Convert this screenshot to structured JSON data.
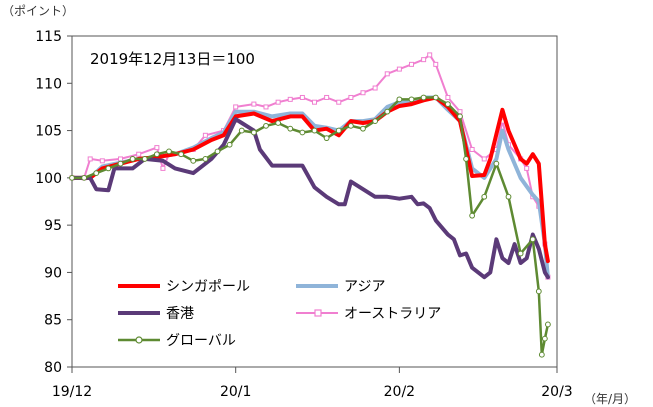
{
  "chart_data": {
    "type": "line",
    "y_unit_label": "（ポイント）",
    "x_unit_label": "（年/月）",
    "annotation": "2019年12月13日＝100",
    "ylim": [
      80,
      115
    ],
    "yticks": [
      80,
      85,
      90,
      95,
      100,
      105,
      110,
      115
    ],
    "xlim": [
      0,
      80
    ],
    "xticks": [
      {
        "pos": 0,
        "label": "19/12"
      },
      {
        "pos": 27,
        "label": "20/1"
      },
      {
        "pos": 54,
        "label": "20/2"
      },
      {
        "pos": 80,
        "label": "20/3"
      }
    ],
    "series": [
      {
        "name": "シンガポール",
        "color": "#ff0000",
        "width": 4,
        "marker": "none",
        "points": [
          [
            0,
            100
          ],
          [
            3,
            100
          ],
          [
            5,
            101
          ],
          [
            8,
            101.5
          ],
          [
            11,
            102
          ],
          [
            14,
            102.2
          ],
          [
            17,
            102.5
          ],
          [
            20,
            103
          ],
          [
            23,
            104
          ],
          [
            25,
            104.5
          ],
          [
            27,
            106.5
          ],
          [
            30,
            106.8
          ],
          [
            33,
            106
          ],
          [
            36,
            106.5
          ],
          [
            38,
            106.5
          ],
          [
            40,
            105
          ],
          [
            42,
            105.2
          ],
          [
            44,
            104.5
          ],
          [
            46,
            106
          ],
          [
            48,
            105.8
          ],
          [
            50,
            106
          ],
          [
            52,
            107
          ],
          [
            54,
            107.6
          ],
          [
            56,
            107.8
          ],
          [
            58,
            108.2
          ],
          [
            60,
            108.5
          ],
          [
            62,
            107.5
          ],
          [
            64,
            106
          ],
          [
            66,
            100.2
          ],
          [
            68,
            100.3
          ],
          [
            69,
            102
          ],
          [
            71,
            107.2
          ],
          [
            72,
            105
          ],
          [
            74,
            102
          ],
          [
            75,
            101.5
          ],
          [
            76,
            102.5
          ],
          [
            77,
            101.5
          ],
          [
            78,
            93
          ],
          [
            78.5,
            91.2
          ]
        ]
      },
      {
        "name": "アジア",
        "color": "#8fb4d9",
        "width": 4,
        "marker": "none",
        "points": [
          [
            0,
            100
          ],
          [
            3,
            100
          ],
          [
            5,
            101.2
          ],
          [
            8,
            101.6
          ],
          [
            11,
            102
          ],
          [
            14,
            102.2
          ],
          [
            17,
            102.5
          ],
          [
            20,
            103.2
          ],
          [
            23,
            104.2
          ],
          [
            25,
            104.8
          ],
          [
            27,
            107
          ],
          [
            30,
            107
          ],
          [
            33,
            106.5
          ],
          [
            36,
            106.8
          ],
          [
            38,
            106.8
          ],
          [
            40,
            105.5
          ],
          [
            42,
            105.3
          ],
          [
            44,
            105
          ],
          [
            46,
            106
          ],
          [
            48,
            106
          ],
          [
            50,
            106.2
          ],
          [
            52,
            107.5
          ],
          [
            54,
            108
          ],
          [
            56,
            108
          ],
          [
            58,
            108.5
          ],
          [
            60,
            108.5
          ],
          [
            62,
            107.2
          ],
          [
            64,
            106
          ],
          [
            66,
            101
          ],
          [
            68,
            100
          ],
          [
            70,
            102
          ],
          [
            71,
            105
          ],
          [
            72,
            103
          ],
          [
            74,
            100
          ],
          [
            76,
            98.2
          ],
          [
            77,
            97.5
          ],
          [
            78,
            93
          ],
          [
            78.5,
            89.5
          ]
        ]
      },
      {
        "name": "香港",
        "color": "#5b3a78",
        "width": 4,
        "marker": "none",
        "points": [
          [
            0,
            100
          ],
          [
            3,
            100
          ],
          [
            4,
            98.8
          ],
          [
            6,
            98.7
          ],
          [
            7,
            101
          ],
          [
            10,
            101
          ],
          [
            12,
            102
          ],
          [
            15,
            101.8
          ],
          [
            17,
            101
          ],
          [
            20,
            100.5
          ],
          [
            23,
            102
          ],
          [
            25,
            103.5
          ],
          [
            27,
            106.2
          ],
          [
            28,
            105.8
          ],
          [
            30,
            105
          ],
          [
            31,
            103
          ],
          [
            33,
            101.3
          ],
          [
            36,
            101.3
          ],
          [
            38,
            101.3
          ],
          [
            40,
            99
          ],
          [
            42,
            98
          ],
          [
            44,
            97.2
          ],
          [
            45,
            97.2
          ],
          [
            46,
            99.6
          ],
          [
            48,
            98.8
          ],
          [
            50,
            98
          ],
          [
            52,
            98
          ],
          [
            54,
            97.8
          ],
          [
            56,
            98
          ],
          [
            57,
            97.2
          ],
          [
            58,
            97.3
          ],
          [
            59,
            96.8
          ],
          [
            60,
            95.5
          ],
          [
            62,
            94
          ],
          [
            63,
            93.5
          ],
          [
            64,
            91.8
          ],
          [
            65,
            92
          ],
          [
            66,
            90.5
          ],
          [
            68,
            89.5
          ],
          [
            69,
            90
          ],
          [
            70,
            93.5
          ],
          [
            71,
            91.5
          ],
          [
            72,
            91
          ],
          [
            73,
            93
          ],
          [
            74,
            91
          ],
          [
            75,
            91.5
          ],
          [
            76,
            94
          ],
          [
            77,
            92.5
          ],
          [
            78,
            90
          ],
          [
            78.5,
            89.5
          ]
        ]
      },
      {
        "name": "オーストラリア",
        "color": "#f07fd0",
        "width": 2,
        "marker": "square",
        "points": [
          [
            0,
            100
          ],
          [
            2,
            100
          ],
          [
            3,
            102
          ],
          [
            5,
            101.8
          ],
          [
            8,
            102
          ],
          [
            11,
            102.5
          ],
          [
            14,
            103.2
          ],
          [
            15,
            101
          ],
          [
            16,
            102.5
          ],
          [
            18,
            102.5
          ],
          [
            20,
            103
          ],
          [
            22,
            104.5
          ],
          [
            25,
            105
          ],
          [
            27,
            107.5
          ],
          [
            30,
            107.8
          ],
          [
            32,
            107.5
          ],
          [
            34,
            108
          ],
          [
            36,
            108.3
          ],
          [
            38,
            108.5
          ],
          [
            40,
            108
          ],
          [
            42,
            108.5
          ],
          [
            44,
            108
          ],
          [
            46,
            108.5
          ],
          [
            48,
            109
          ],
          [
            50,
            109.5
          ],
          [
            52,
            111
          ],
          [
            54,
            111.5
          ],
          [
            56,
            112
          ],
          [
            58,
            112.5
          ],
          [
            59,
            113
          ],
          [
            60,
            112
          ],
          [
            62,
            108.5
          ],
          [
            64,
            107
          ],
          [
            66,
            103
          ],
          [
            68,
            102
          ],
          [
            70,
            103
          ],
          [
            71,
            106
          ],
          [
            72,
            103.5
          ],
          [
            74,
            102
          ],
          [
            75,
            101
          ],
          [
            76,
            98
          ],
          [
            77,
            97
          ],
          [
            78,
            93
          ],
          [
            78.5,
            89.5
          ]
        ]
      },
      {
        "name": "グローバル",
        "color": "#5e8a32",
        "width": 2.5,
        "marker": "circle",
        "points": [
          [
            0,
            100
          ],
          [
            2,
            100
          ],
          [
            4,
            100.5
          ],
          [
            6,
            101
          ],
          [
            8,
            101.5
          ],
          [
            10,
            102
          ],
          [
            12,
            102
          ],
          [
            14,
            102.5
          ],
          [
            16,
            102.8
          ],
          [
            18,
            102.5
          ],
          [
            20,
            101.8
          ],
          [
            22,
            102
          ],
          [
            24,
            102.8
          ],
          [
            26,
            103.5
          ],
          [
            28,
            105
          ],
          [
            30,
            104.8
          ],
          [
            32,
            105.5
          ],
          [
            34,
            105.8
          ],
          [
            36,
            105.2
          ],
          [
            38,
            104.8
          ],
          [
            40,
            105
          ],
          [
            42,
            104.2
          ],
          [
            44,
            105
          ],
          [
            46,
            105.5
          ],
          [
            48,
            105.2
          ],
          [
            50,
            106
          ],
          [
            52,
            107
          ],
          [
            54,
            108.3
          ],
          [
            56,
            108.3
          ],
          [
            58,
            108.5
          ],
          [
            60,
            108.5
          ],
          [
            62,
            107.8
          ],
          [
            64,
            106.5
          ],
          [
            65,
            102
          ],
          [
            66,
            96
          ],
          [
            68,
            98
          ],
          [
            70,
            101.5
          ],
          [
            72,
            98
          ],
          [
            74,
            92
          ],
          [
            76,
            93.5
          ],
          [
            77,
            88
          ],
          [
            77.5,
            81.3
          ],
          [
            78,
            83
          ],
          [
            78.5,
            84.5
          ]
        ]
      }
    ]
  }
}
